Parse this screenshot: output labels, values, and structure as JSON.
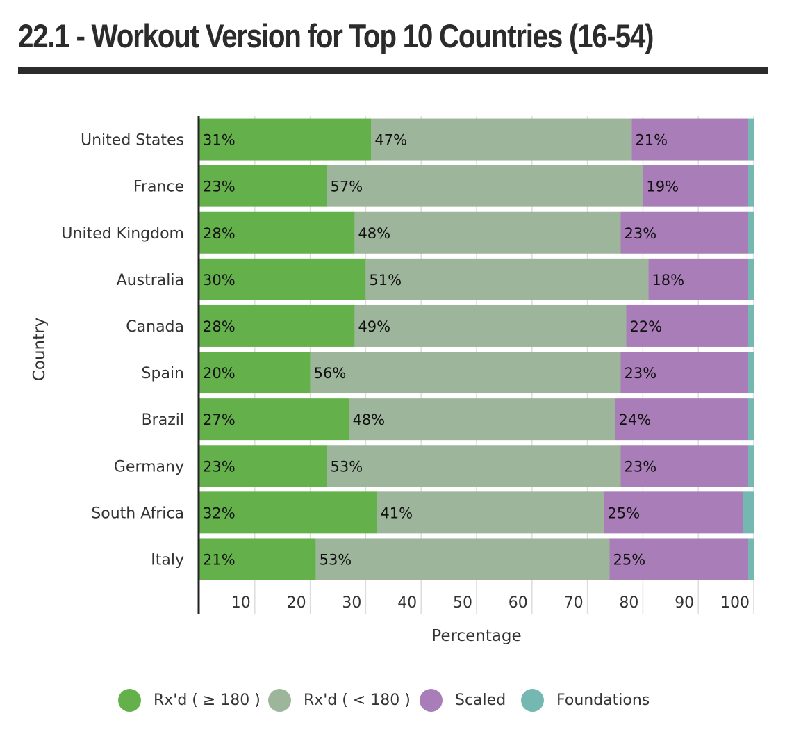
{
  "page": {
    "title": "22.1 - Workout Version for Top 10 Countries (16-54)"
  },
  "chart_data": {
    "type": "bar",
    "orientation": "horizontal",
    "stacked": true,
    "title": "22.1 - Workout Version for Top 10 Countries (16-54)",
    "xlabel": "Percentage",
    "ylabel": "Country",
    "xlim": [
      0,
      100
    ],
    "xticks": [
      10,
      20,
      30,
      40,
      50,
      60,
      70,
      80,
      90,
      100
    ],
    "grid": "vertical",
    "legend_position": "bottom",
    "categories": [
      "United States",
      "France",
      "United Kingdom",
      "Australia",
      "Canada",
      "Spain",
      "Brazil",
      "Germany",
      "South Africa",
      "Italy"
    ],
    "series": [
      {
        "name": "Rx'd ( ≥ 180 )",
        "color": "#64b14c",
        "values": [
          31,
          23,
          28,
          30,
          28,
          20,
          27,
          23,
          32,
          21
        ]
      },
      {
        "name": "Rx'd ( < 180 )",
        "color": "#9db59a",
        "values": [
          47,
          57,
          48,
          51,
          49,
          56,
          48,
          53,
          41,
          53
        ]
      },
      {
        "name": "Scaled",
        "color": "#a97db7",
        "values": [
          21,
          19,
          23,
          18,
          22,
          23,
          24,
          23,
          25,
          25
        ]
      },
      {
        "name": "Foundations",
        "color": "#74b8b1",
        "values": [
          1,
          1,
          1,
          1,
          1,
          1,
          1,
          1,
          2,
          1
        ]
      }
    ],
    "data_labels": [
      [
        "31%",
        "23%",
        "28%",
        "30%",
        "28%",
        "20%",
        "27%",
        "23%",
        "32%",
        "21%"
      ],
      [
        "47%",
        "57%",
        "48%",
        "51%",
        "49%",
        "56%",
        "48%",
        "53%",
        "41%",
        "53%"
      ],
      [
        "21%",
        "19%",
        "23%",
        "18%",
        "22%",
        "23%",
        "24%",
        "23%",
        "25%",
        "25%"
      ]
    ]
  }
}
